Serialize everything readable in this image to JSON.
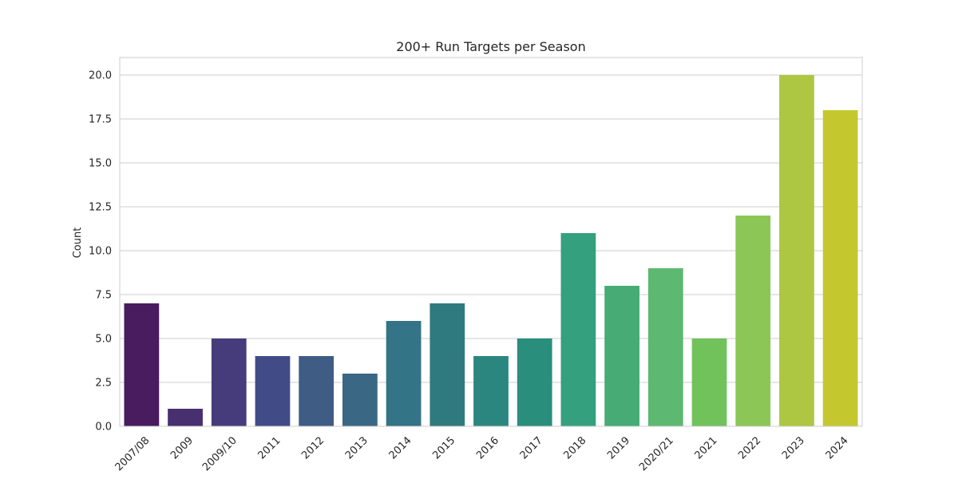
{
  "chart_data": {
    "type": "bar",
    "title": "200+ Run Targets per Season",
    "xlabel": "",
    "ylabel": "Count",
    "categories": [
      "2007/08",
      "2009",
      "2009/10",
      "2011",
      "2012",
      "2013",
      "2014",
      "2015",
      "2016",
      "2017",
      "2018",
      "2019",
      "2020/21",
      "2021",
      "2022",
      "2023",
      "2024"
    ],
    "values": [
      7,
      1,
      5,
      4,
      4,
      3,
      6,
      7,
      4,
      5,
      11,
      8,
      9,
      5,
      12,
      20,
      18
    ],
    "ylim": [
      0,
      21
    ],
    "yticks": [
      "0.0",
      "2.5",
      "5.0",
      "7.5",
      "10.0",
      "12.5",
      "15.0",
      "17.5",
      "20.0"
    ],
    "grid": "horizontal",
    "colors": [
      "#481c5f",
      "#482f6f",
      "#463c7c",
      "#414c86",
      "#3e5c84",
      "#3a6783",
      "#337486",
      "#2f7a7e",
      "#2c8680",
      "#2a8e7c",
      "#35a07e",
      "#46ab75",
      "#5db871",
      "#72c25c",
      "#8cc657",
      "#adc742",
      "#c4c82e"
    ]
  }
}
